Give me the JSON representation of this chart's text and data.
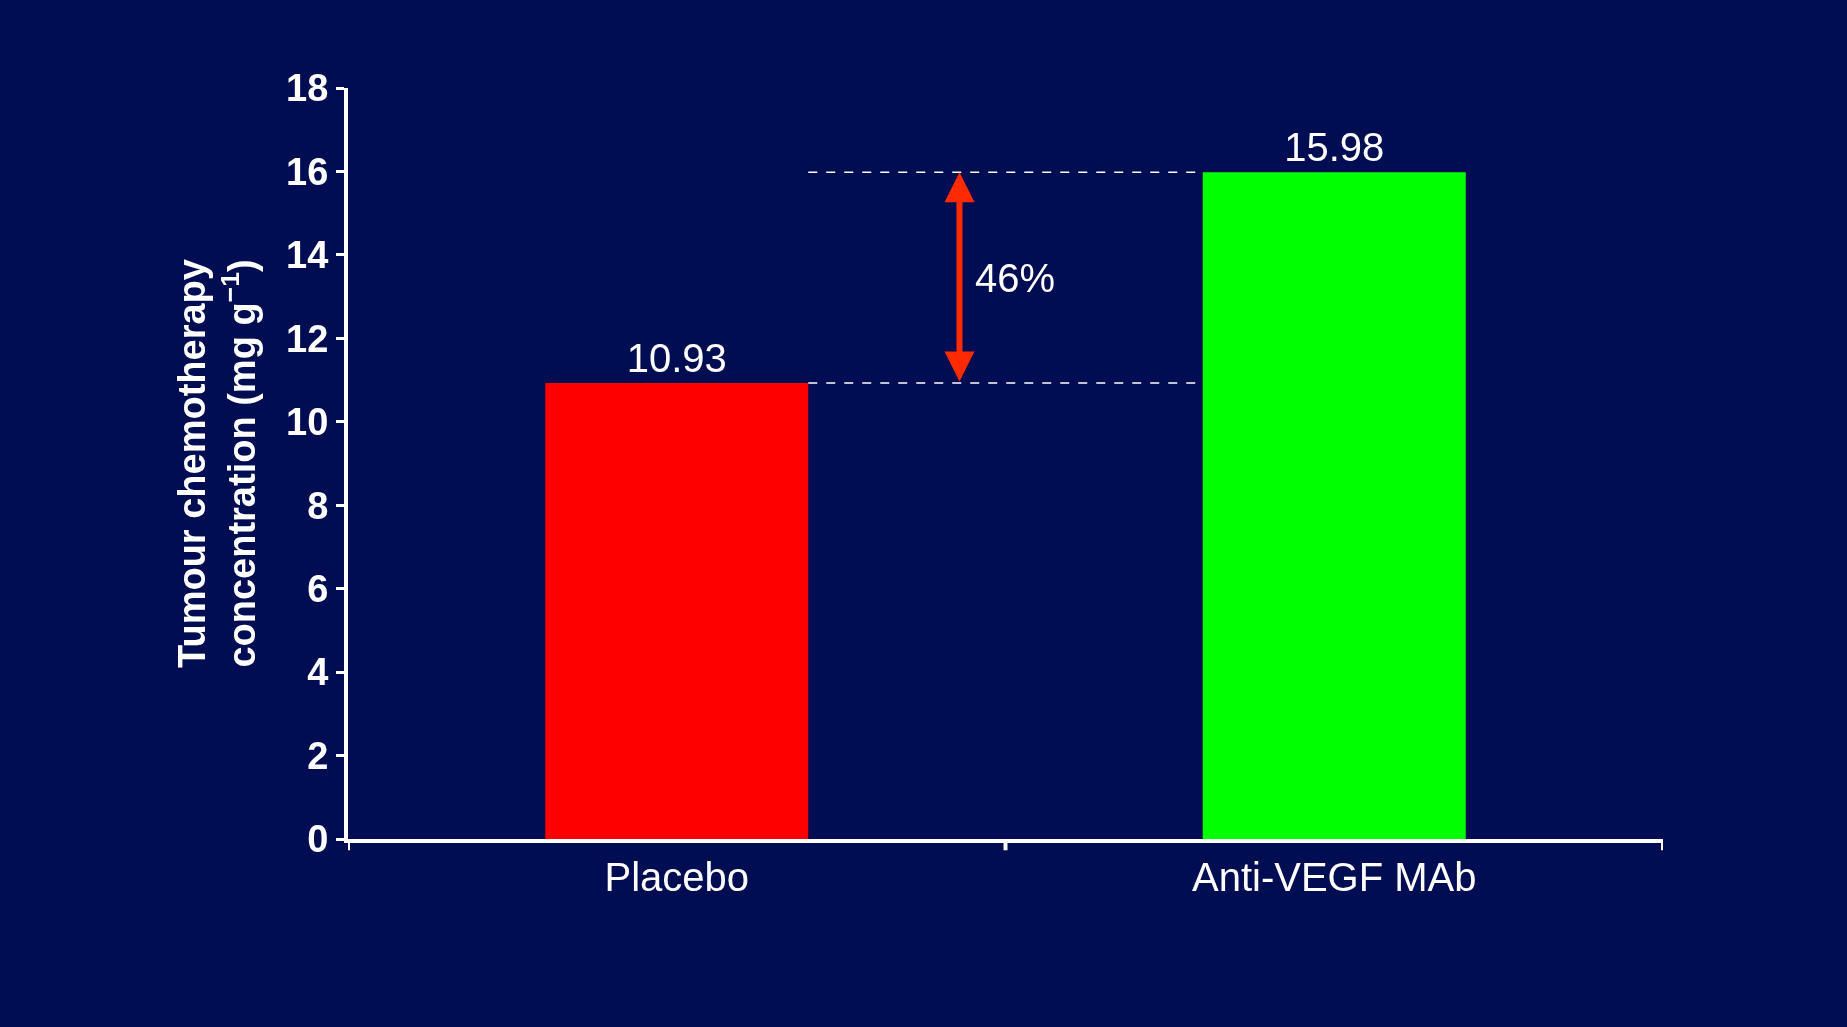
{
  "chart_data": {
    "type": "bar",
    "ylabel": "Tumour chemotherapy\nconcentration (mg g$^{−1}$)",
    "categories": [
      "Placebo",
      "Anti-VEGF MAb"
    ],
    "values": [
      10.93,
      15.98
    ],
    "colors": [
      "#ff0000",
      "#00ff00"
    ],
    "data_labels": true,
    "ylim": [
      0,
      18
    ],
    "yticks": [
      0,
      2,
      4,
      6,
      8,
      10,
      12,
      14,
      16,
      18
    ],
    "ref_lines": [
      {
        "axis": "y",
        "value": 10.93,
        "color": "#ffffff",
        "line_style": "dashed"
      },
      {
        "axis": "y",
        "value": 15.98,
        "color": "#ffffff",
        "line_style": "dashed"
      }
    ],
    "annotations": [
      "46%"
    ],
    "grid": false,
    "legend": false
  }
}
